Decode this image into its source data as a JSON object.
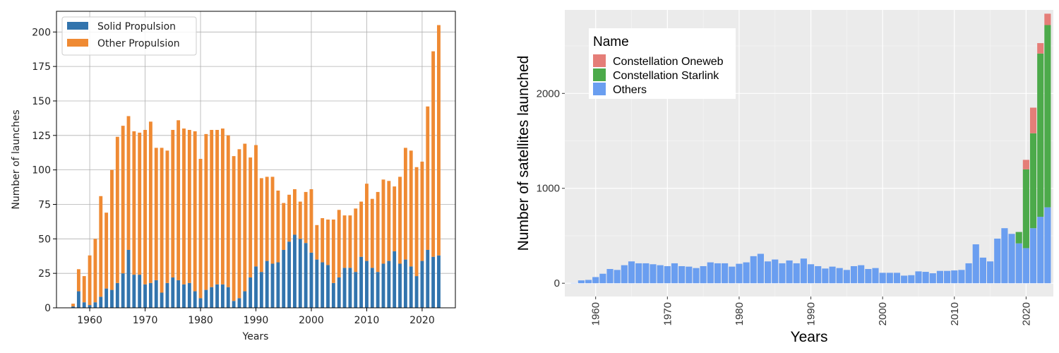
{
  "chart_data": [
    {
      "type": "bar",
      "stacked": true,
      "xlabel": "Years",
      "ylabel": "Number of launches",
      "xlim": [
        1954,
        2026
      ],
      "ylim": [
        0,
        215
      ],
      "xticks": [
        1960,
        1970,
        1980,
        1990,
        2000,
        2010,
        2020
      ],
      "yticks": [
        0,
        25,
        50,
        75,
        100,
        125,
        150,
        175,
        200
      ],
      "grid": true,
      "legend": "top-left",
      "x": [
        1957,
        1958,
        1959,
        1960,
        1961,
        1962,
        1963,
        1964,
        1965,
        1966,
        1967,
        1968,
        1969,
        1970,
        1971,
        1972,
        1973,
        1974,
        1975,
        1976,
        1977,
        1978,
        1979,
        1980,
        1981,
        1982,
        1983,
        1984,
        1985,
        1986,
        1987,
        1988,
        1989,
        1990,
        1991,
        1992,
        1993,
        1994,
        1995,
        1996,
        1997,
        1998,
        1999,
        2000,
        2001,
        2002,
        2003,
        2004,
        2005,
        2006,
        2007,
        2008,
        2009,
        2010,
        2011,
        2012,
        2013,
        2014,
        2015,
        2016,
        2017,
        2018,
        2019,
        2020,
        2021,
        2022,
        2023
      ],
      "series": [
        {
          "name": "Solid Propulsion",
          "color": "#3274ad",
          "values": [
            1,
            12,
            4,
            2,
            4,
            8,
            14,
            13,
            18,
            25,
            42,
            24,
            24,
            17,
            18,
            20,
            11,
            18,
            22,
            20,
            17,
            18,
            12,
            7,
            13,
            15,
            17,
            17,
            15,
            5,
            7,
            12,
            22,
            30,
            26,
            34,
            32,
            33,
            42,
            48,
            53,
            50,
            47,
            40,
            35,
            33,
            31,
            18,
            22,
            29,
            29,
            26,
            37,
            34,
            29,
            26,
            32,
            34,
            41,
            32,
            35,
            30,
            23,
            34,
            42,
            37,
            38
          ]
        },
        {
          "name": "Other Propulsion",
          "color": "#ef8a33",
          "values": [
            2,
            16,
            19,
            36,
            46,
            73,
            55,
            87,
            106,
            107,
            97,
            104,
            103,
            112,
            117,
            96,
            105,
            96,
            107,
            116,
            113,
            111,
            116,
            101,
            113,
            114,
            112,
            113,
            110,
            105,
            108,
            107,
            87,
            88,
            68,
            61,
            63,
            52,
            34,
            34,
            33,
            27,
            37,
            46,
            25,
            32,
            33,
            46,
            49,
            38,
            38,
            46,
            40,
            56,
            50,
            58,
            61,
            58,
            47,
            63,
            81,
            84,
            79,
            72,
            104,
            149,
            167
          ]
        }
      ]
    },
    {
      "type": "bar",
      "stacked": true,
      "xlabel": "Years",
      "ylabel": "Number of satellites launched",
      "legend_title": "Name",
      "xlim": [
        1955.7,
        2023.8
      ],
      "ylim": [
        -140,
        2880
      ],
      "xticks": [
        1960,
        1970,
        1980,
        1990,
        2000,
        2010,
        2020
      ],
      "yticks": [
        0,
        1000,
        2000
      ],
      "legend": "top-left",
      "x": [
        1957,
        1958,
        1959,
        1960,
        1961,
        1962,
        1963,
        1964,
        1965,
        1966,
        1967,
        1968,
        1969,
        1970,
        1971,
        1972,
        1973,
        1974,
        1975,
        1976,
        1977,
        1978,
        1979,
        1980,
        1981,
        1982,
        1983,
        1984,
        1985,
        1986,
        1987,
        1988,
        1989,
        1990,
        1991,
        1992,
        1993,
        1994,
        1995,
        1996,
        1997,
        1998,
        1999,
        2000,
        2001,
        2002,
        2003,
        2004,
        2005,
        2006,
        2007,
        2008,
        2009,
        2010,
        2011,
        2012,
        2013,
        2014,
        2015,
        2016,
        2017,
        2018,
        2019,
        2020,
        2021,
        2022,
        2023
      ],
      "series": [
        {
          "name": "Others",
          "color": "#6a9ef0",
          "values": [
            2,
            30,
            35,
            65,
            100,
            150,
            140,
            190,
            230,
            210,
            210,
            200,
            190,
            180,
            210,
            180,
            175,
            160,
            180,
            220,
            210,
            210,
            175,
            205,
            220,
            285,
            310,
            230,
            250,
            210,
            240,
            210,
            260,
            200,
            180,
            155,
            175,
            160,
            140,
            180,
            190,
            150,
            160,
            110,
            110,
            110,
            80,
            85,
            125,
            120,
            105,
            130,
            130,
            135,
            140,
            210,
            410,
            270,
            230,
            470,
            580,
            520,
            420,
            370,
            580,
            700,
            800
          ]
        },
        {
          "name": "Constellation Starlink",
          "color": "#4caa4a",
          "values": [
            0,
            0,
            0,
            0,
            0,
            0,
            0,
            0,
            0,
            0,
            0,
            0,
            0,
            0,
            0,
            0,
            0,
            0,
            0,
            0,
            0,
            0,
            0,
            0,
            0,
            0,
            0,
            0,
            0,
            0,
            0,
            0,
            0,
            0,
            0,
            0,
            0,
            0,
            0,
            0,
            0,
            0,
            0,
            0,
            0,
            0,
            0,
            0,
            0,
            0,
            0,
            0,
            0,
            0,
            0,
            0,
            0,
            0,
            0,
            0,
            0,
            0,
            120,
            830,
            1000,
            1720,
            1920
          ]
        },
        {
          "name": "Constellation Oneweb",
          "color": "#e57e78",
          "values": [
            0,
            0,
            0,
            0,
            0,
            0,
            0,
            0,
            0,
            0,
            0,
            0,
            0,
            0,
            0,
            0,
            0,
            0,
            0,
            0,
            0,
            0,
            0,
            0,
            0,
            0,
            0,
            0,
            0,
            0,
            0,
            0,
            0,
            0,
            0,
            0,
            0,
            0,
            0,
            0,
            0,
            0,
            0,
            0,
            0,
            0,
            0,
            0,
            0,
            0,
            0,
            0,
            0,
            0,
            0,
            0,
            0,
            0,
            0,
            0,
            0,
            0,
            0,
            100,
            270,
            110,
            120
          ]
        }
      ]
    }
  ]
}
